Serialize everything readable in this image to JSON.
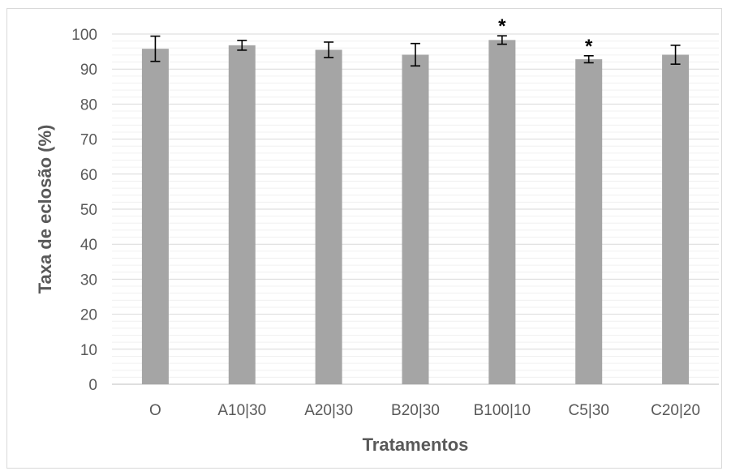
{
  "chart_data": {
    "type": "bar",
    "title": "",
    "xlabel": "Tratamentos",
    "ylabel": "Taxa de eclosão (%)",
    "ylim": [
      0,
      100
    ],
    "yticks": [
      0,
      10,
      20,
      30,
      40,
      50,
      60,
      70,
      80,
      90,
      100
    ],
    "grid": true,
    "legend": "none",
    "categories": [
      "O",
      "A10|30",
      "A20|30",
      "B20|30",
      "B100|10",
      "C5|30",
      "C20|20"
    ],
    "series": [
      {
        "values": [
          95.8,
          96.8,
          95.5,
          94.1,
          98.3,
          92.8,
          94.1
        ],
        "error": [
          3.6,
          1.4,
          2.2,
          3.2,
          1.2,
          1.0,
          2.7
        ],
        "color": "#a5a5a5"
      }
    ],
    "significance": [
      "",
      "",
      "",
      "",
      "*",
      "*",
      ""
    ]
  }
}
